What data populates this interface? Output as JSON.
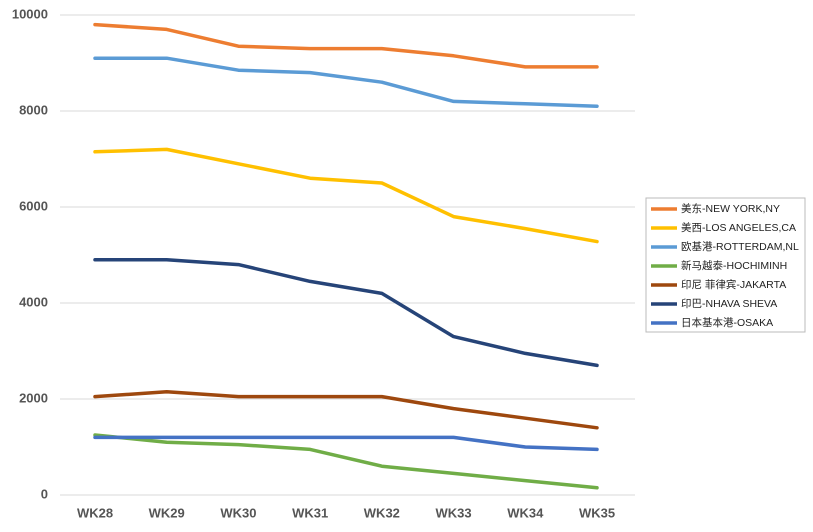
{
  "chart_data": {
    "type": "line",
    "categories": [
      "WK28",
      "WK29",
      "WK30",
      "WK31",
      "WK32",
      "WK33",
      "WK34",
      "WK35"
    ],
    "series": [
      {
        "name": "美东-NEW YORK,NY",
        "color": "#ed7d31",
        "values": [
          9800,
          9700,
          9350,
          9300,
          9300,
          9150,
          8920,
          8920
        ]
      },
      {
        "name": "美西-LOS ANGELES,CA",
        "color": "#ffc000",
        "values": [
          7150,
          7200,
          6900,
          6600,
          6500,
          5800,
          5550,
          5280
        ]
      },
      {
        "name": "欧基港-ROTTERDAM,NL",
        "color": "#5b9bd5",
        "values": [
          9100,
          9100,
          8850,
          8800,
          8600,
          8200,
          8150,
          8100
        ]
      },
      {
        "name": "新马越泰-HOCHIMINH",
        "color": "#70ad47",
        "values": [
          1250,
          1100,
          1050,
          950,
          600,
          450,
          300,
          150
        ]
      },
      {
        "name": "印尼 菲律宾-JAKARTA",
        "color": "#9e480e",
        "values": [
          2050,
          2150,
          2050,
          2050,
          2050,
          1800,
          1600,
          1400
        ]
      },
      {
        "name": "印巴-NHAVA SHEVA",
        "color": "#264478",
        "values": [
          4900,
          4900,
          4800,
          4450,
          4200,
          3300,
          2950,
          2700
        ]
      },
      {
        "name": "日本基本港-OSAKA",
        "color": "#4472c4",
        "values": [
          1200,
          1200,
          1200,
          1200,
          1200,
          1200,
          1000,
          950
        ]
      }
    ],
    "ylim": [
      0,
      10000
    ],
    "yticks": [
      0,
      2000,
      4000,
      6000,
      8000,
      10000
    ],
    "grid": true,
    "legend": "right"
  }
}
